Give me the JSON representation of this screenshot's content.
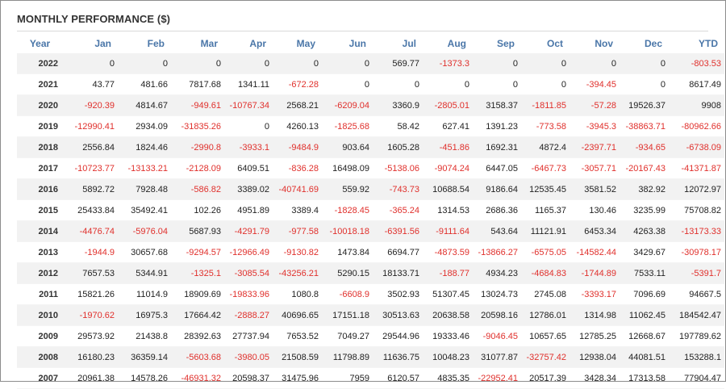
{
  "title": "MONTHLY PERFORMANCE ($)",
  "colors": {
    "header": "#4a76a8",
    "negative": "#e0302c",
    "stripe": "#f2f2f2"
  },
  "columns": [
    "Year",
    "Jan",
    "Feb",
    "Mar",
    "Apr",
    "May",
    "Jun",
    "Jul",
    "Aug",
    "Sep",
    "Oct",
    "Nov",
    "Dec",
    "YTD"
  ],
  "rows": [
    [
      "2022",
      "0",
      "0",
      "0",
      "0",
      "0",
      "0",
      "569.77",
      "-1373.3",
      "0",
      "0",
      "0",
      "0",
      "-803.53"
    ],
    [
      "2021",
      "43.77",
      "481.66",
      "7817.68",
      "1341.11",
      "-672.28",
      "0",
      "0",
      "0",
      "0",
      "0",
      "-394.45",
      "0",
      "8617.49"
    ],
    [
      "2020",
      "-920.39",
      "4814.67",
      "-949.61",
      "-10767.34",
      "2568.21",
      "-6209.04",
      "3360.9",
      "-2805.01",
      "3158.37",
      "-1811.85",
      "-57.28",
      "19526.37",
      "9908"
    ],
    [
      "2019",
      "-12990.41",
      "2934.09",
      "-31835.26",
      "0",
      "4260.13",
      "-1825.68",
      "58.42",
      "627.41",
      "1391.23",
      "-773.58",
      "-3945.3",
      "-38863.71",
      "-80962.66"
    ],
    [
      "2018",
      "2556.84",
      "1824.46",
      "-2990.8",
      "-3933.1",
      "-9484.9",
      "903.64",
      "1605.28",
      "-451.86",
      "1692.31",
      "4872.4",
      "-2397.71",
      "-934.65",
      "-6738.09"
    ],
    [
      "2017",
      "-10723.77",
      "-13133.21",
      "-2128.09",
      "6409.51",
      "-836.28",
      "16498.09",
      "-5138.06",
      "-9074.24",
      "6447.05",
      "-6467.73",
      "-3057.71",
      "-20167.43",
      "-41371.87"
    ],
    [
      "2016",
      "5892.72",
      "7928.48",
      "-586.82",
      "3389.02",
      "-40741.69",
      "559.92",
      "-743.73",
      "10688.54",
      "9186.64",
      "12535.45",
      "3581.52",
      "382.92",
      "12072.97"
    ],
    [
      "2015",
      "25433.84",
      "35492.41",
      "102.26",
      "4951.89",
      "3389.4",
      "-1828.45",
      "-365.24",
      "1314.53",
      "2686.36",
      "1165.37",
      "130.46",
      "3235.99",
      "75708.82"
    ],
    [
      "2014",
      "-4476.74",
      "-5976.04",
      "5687.93",
      "-4291.79",
      "-977.58",
      "-10018.18",
      "-6391.56",
      "-9111.64",
      "543.64",
      "11121.91",
      "6453.34",
      "4263.38",
      "-13173.33"
    ],
    [
      "2013",
      "-1944.9",
      "30657.68",
      "-9294.57",
      "-12966.49",
      "-9130.82",
      "1473.84",
      "6694.77",
      "-4873.59",
      "-13866.27",
      "-6575.05",
      "-14582.44",
      "3429.67",
      "-30978.17"
    ],
    [
      "2012",
      "7657.53",
      "5344.91",
      "-1325.1",
      "-3085.54",
      "-43256.21",
      "5290.15",
      "18133.71",
      "-188.77",
      "4934.23",
      "-4684.83",
      "-1744.89",
      "7533.11",
      "-5391.7"
    ],
    [
      "2011",
      "15821.26",
      "11014.9",
      "18909.69",
      "-19833.96",
      "1080.8",
      "-6608.9",
      "3502.93",
      "51307.45",
      "13024.73",
      "2745.08",
      "-3393.17",
      "7096.69",
      "94667.5"
    ],
    [
      "2010",
      "-1970.62",
      "16975.3",
      "17664.42",
      "-2888.27",
      "40696.65",
      "17151.18",
      "30513.63",
      "20638.58",
      "20598.16",
      "12786.01",
      "1314.98",
      "11062.45",
      "184542.47"
    ],
    [
      "2009",
      "29573.92",
      "21438.8",
      "28392.63",
      "27737.94",
      "7653.52",
      "7049.27",
      "29544.96",
      "19333.46",
      "-9046.45",
      "10657.65",
      "12785.25",
      "12668.67",
      "197789.62"
    ],
    [
      "2008",
      "16180.23",
      "36359.14",
      "-5603.68",
      "-3980.05",
      "21508.59",
      "11798.89",
      "11636.75",
      "10048.23",
      "31077.87",
      "-32757.42",
      "12938.04",
      "44081.51",
      "153288.1"
    ],
    [
      "2007",
      "20961.38",
      "14578.26",
      "-46931.32",
      "20598.37",
      "31475.96",
      "7959",
      "6120.57",
      "4835.35",
      "-22952.41",
      "20517.39",
      "3428.34",
      "17313.58",
      "77904.47"
    ]
  ]
}
